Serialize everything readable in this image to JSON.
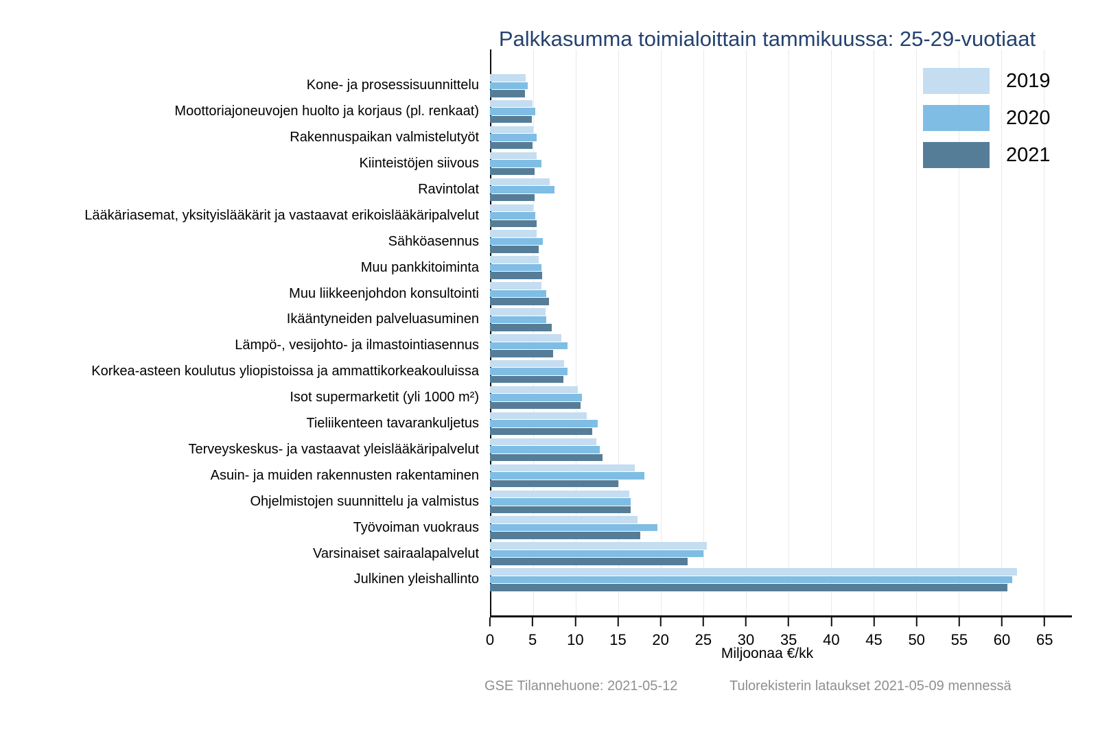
{
  "colors": {
    "title": "#24426f",
    "axis": "#0d0d0d",
    "gridline": "#e9e9e9",
    "footnote": "#8f8f8f",
    "series_2019": "#c5ddf0",
    "series_2020": "#7fbde4",
    "series_2021": "#567d98"
  },
  "footnotes": {
    "left": "GSE Tilannehuone: 2021-05-12",
    "right": "Tulorekisterin lataukset 2021-05-09 mennessä"
  },
  "chart_data": {
    "type": "bar",
    "orientation": "horizontal",
    "title": "Palkkasumma toimialoittain tammikuussa: 25-29-vuotiaat",
    "xlabel": "Miljoonaa €/kk",
    "xlim": [
      0,
      68.2
    ],
    "xmax": 68.2,
    "xticks": [
      0,
      5,
      10,
      15,
      20,
      25,
      30,
      35,
      40,
      45,
      50,
      55,
      60,
      65
    ],
    "grid": "vertical gridlines at every 5 units, behind bars",
    "legend_position": "top-right inside plot area",
    "categories": [
      "Kone- ja prosessisuunnittelu",
      "Moottoriajoneuvojen huolto ja korjaus (pl. renkaat)",
      "Rakennuspaikan valmistelutyöt",
      "Kiinteistöjen siivous",
      "Ravintolat",
      "Lääkäriasemat, yksityislääkärit ja vastaavat erikoislääkäripalvelut",
      "Sähköasennus",
      "Muu pankkitoiminta",
      "Muu liikkeenjohdon konsultointi",
      "Ikääntyneiden palveluasuminen",
      "Lämpö-, vesijohto- ja ilmastointiasennus",
      "Korkea-asteen koulutus yliopistoissa ja ammattikorkeakouluissa",
      "Isot supermarketit (yli 1000 m²)",
      "Tieliikenteen tavarankuljetus",
      "Terveyskeskus- ja vastaavat yleislääkäripalvelut",
      "Asuin- ja muiden rakennusten rakentaminen",
      "Ohjelmistojen suunnittelu ja valmistus",
      "Työvoiman vuokraus",
      "Varsinaiset sairaalapalvelut",
      "Julkinen yleishallinto"
    ],
    "series": [
      {
        "name": "2019",
        "color": "#c5ddf0",
        "values": [
          4.2,
          5.0,
          5.1,
          5.5,
          7.0,
          5.1,
          5.5,
          5.7,
          6.0,
          6.5,
          8.4,
          8.7,
          10.3,
          11.3,
          12.5,
          17.0,
          16.3,
          17.3,
          25.4,
          61.8
        ]
      },
      {
        "name": "2020",
        "color": "#7fbde4",
        "values": [
          4.4,
          5.3,
          5.5,
          6.0,
          7.6,
          5.3,
          6.2,
          6.0,
          6.6,
          6.6,
          9.1,
          9.1,
          10.8,
          12.6,
          12.9,
          18.1,
          16.5,
          19.6,
          25.0,
          61.2
        ]
      },
      {
        "name": "2021",
        "color": "#567d98",
        "values": [
          4.1,
          4.9,
          5.0,
          5.2,
          5.2,
          5.5,
          5.7,
          6.1,
          6.9,
          7.2,
          7.4,
          8.6,
          10.6,
          12.0,
          13.2,
          15.0,
          16.5,
          17.6,
          23.2,
          60.6
        ]
      }
    ]
  }
}
